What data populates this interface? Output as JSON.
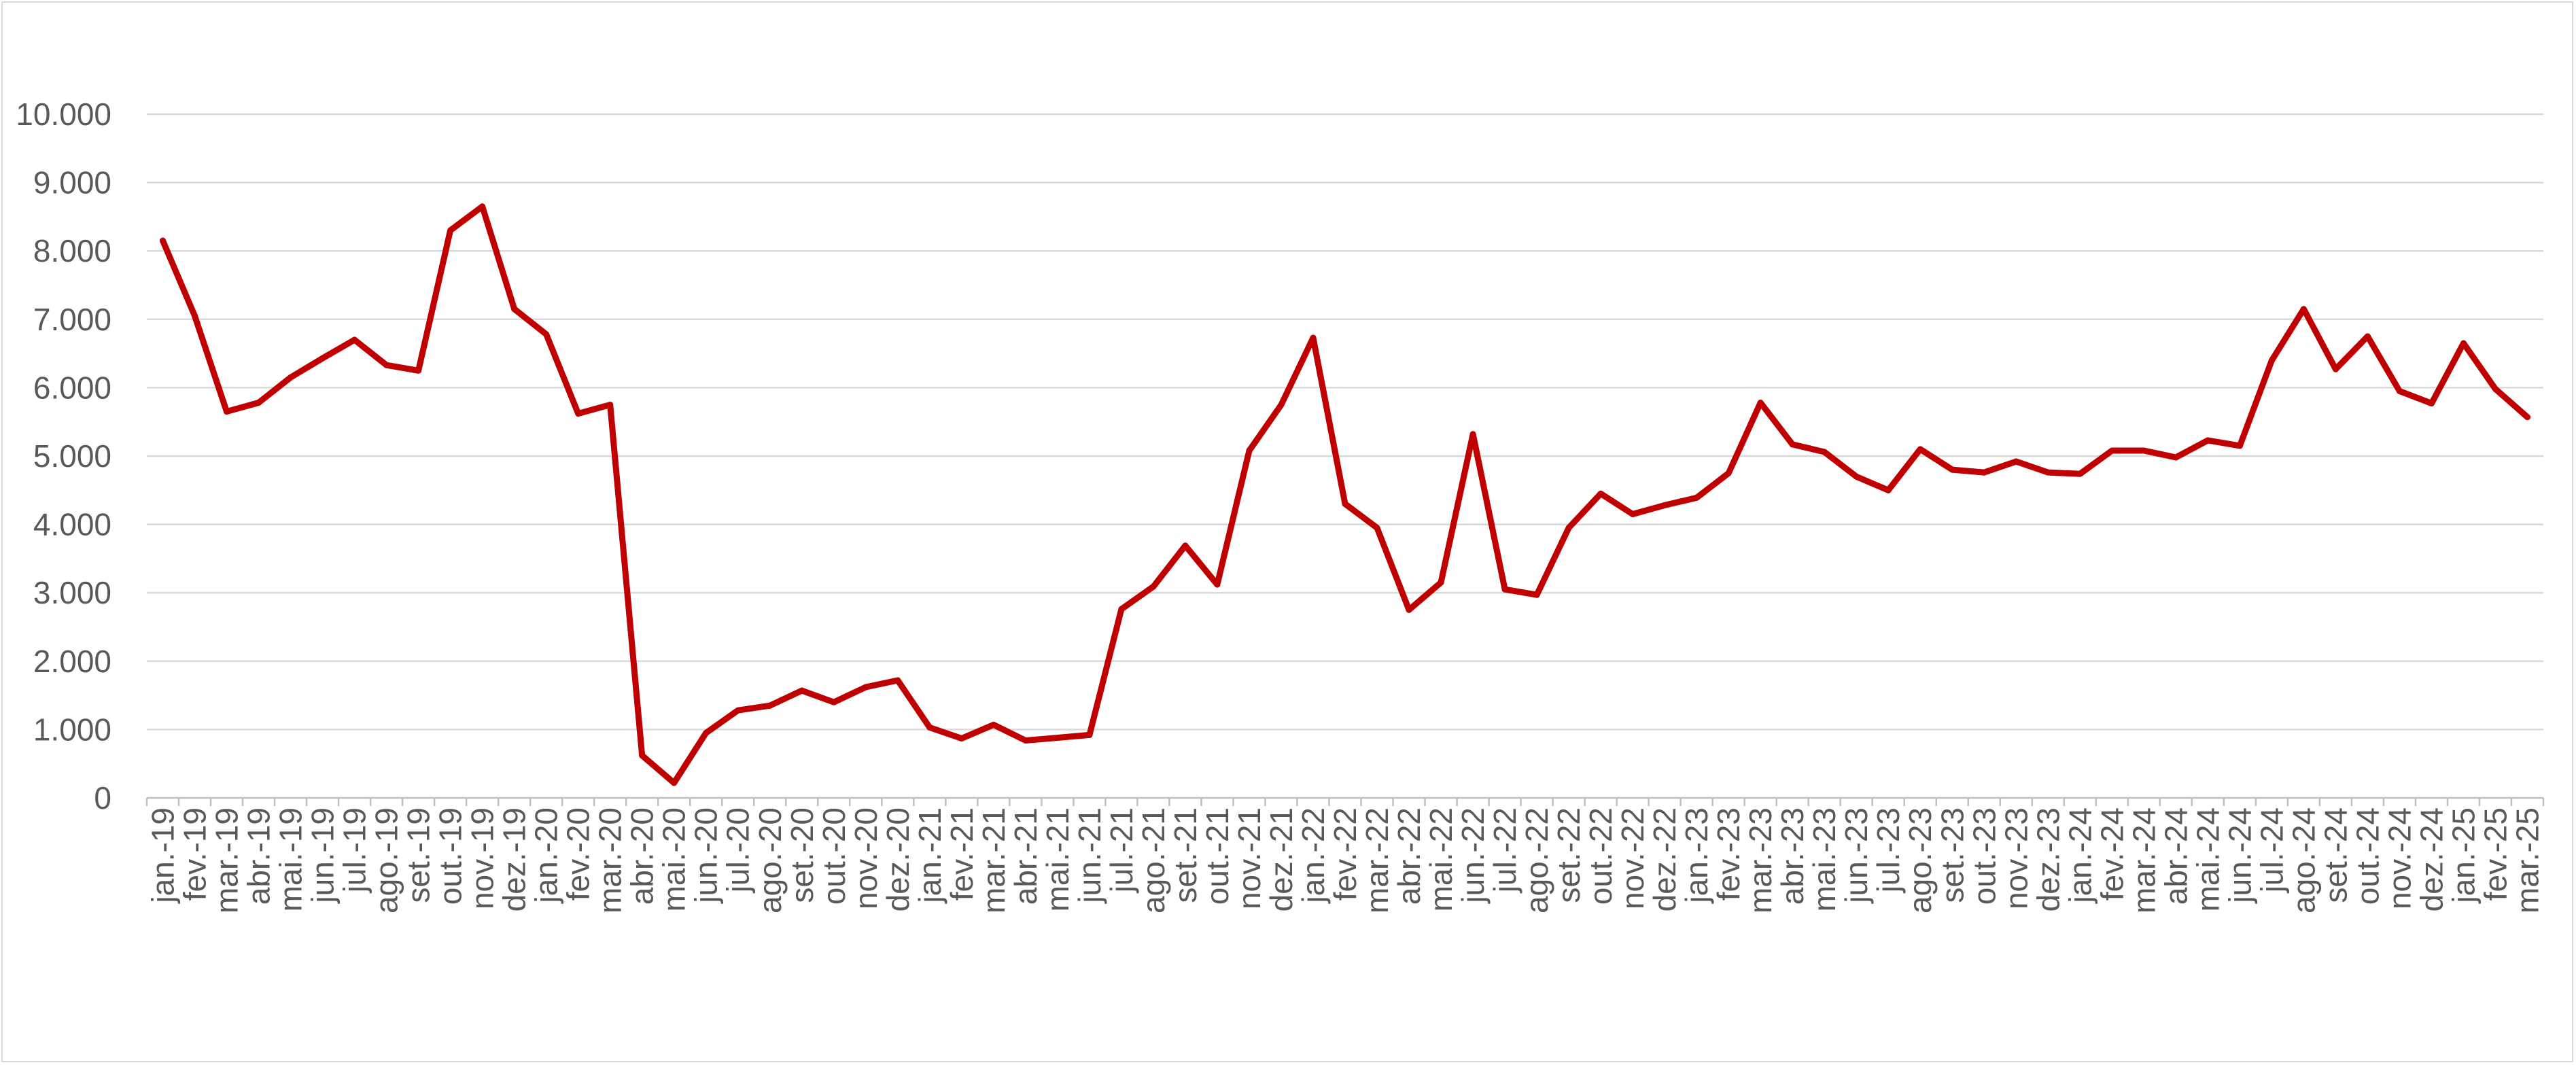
{
  "chart_data": {
    "type": "line",
    "title": "",
    "xlabel": "",
    "ylabel": "",
    "ylim": [
      0,
      10000
    ],
    "yticks": [
      0,
      1000,
      2000,
      3000,
      4000,
      5000,
      6000,
      7000,
      8000,
      9000,
      10000
    ],
    "ytick_labels": [
      "0",
      "1.000",
      "2.000",
      "3.000",
      "4.000",
      "5.000",
      "6.000",
      "7.000",
      "8.000",
      "9.000",
      "10.000"
    ],
    "grid": true,
    "legend": "none",
    "line_color": "#c00000",
    "grid_color": "#d9d9d9",
    "label_color": "#595959",
    "categories": [
      "jan.-19",
      "fev.-19",
      "mar.-19",
      "abr.-19",
      "mai.-19",
      "jun.-19",
      "jul.-19",
      "ago.-19",
      "set.-19",
      "out.-19",
      "nov.-19",
      "dez.-19",
      "jan.-20",
      "fev.-20",
      "mar.-20",
      "abr.-20",
      "mai.-20",
      "jun.-20",
      "jul.-20",
      "ago.-20",
      "set.-20",
      "out.-20",
      "nov.-20",
      "dez.-20",
      "jan.-21",
      "fev.-21",
      "mar.-21",
      "abr.-21",
      "mai.-21",
      "jun.-21",
      "jul.-21",
      "ago.-21",
      "set.-21",
      "out.-21",
      "nov.-21",
      "dez.-21",
      "jan.-22",
      "fev.-22",
      "mar.-22",
      "abr.-22",
      "mai.-22",
      "jun.-22",
      "jul.-22",
      "ago.-22",
      "set.-22",
      "out.-22",
      "nov.-22",
      "dez.-22",
      "jan.-23",
      "fev.-23",
      "mar.-23",
      "abr.-23",
      "mai.-23",
      "jun.-23",
      "jul.-23",
      "ago.-23",
      "set.-23",
      "out.-23",
      "nov.-23",
      "dez.-23",
      "jan.-24",
      "fev.-24",
      "mar.-24",
      "abr.-24",
      "mai.-24",
      "jun.-24",
      "jul.-24",
      "ago.-24",
      "set.-24",
      "out.-24",
      "nov.-24",
      "dez.-24",
      "jan.-25",
      "fev.-25",
      "mar.-25"
    ],
    "series": [
      {
        "values": [
          8150,
          7050,
          5650,
          5780,
          6150,
          6430,
          6700,
          6330,
          6250,
          8300,
          8650,
          7150,
          6780,
          5620,
          5750,
          620,
          220,
          950,
          1280,
          1350,
          1570,
          1400,
          1620,
          1720,
          1030,
          870,
          1070,
          840,
          880,
          920,
          2760,
          3090,
          3690,
          3120,
          5080,
          5750,
          6730,
          4300,
          3950,
          2750,
          3150,
          5320,
          3050,
          2970,
          3950,
          4450,
          4150,
          4280,
          4390,
          4750,
          5780,
          5170,
          5060,
          4700,
          4500,
          5100,
          4800,
          4760,
          4920,
          4760,
          4740,
          5080,
          5080,
          4980,
          5230,
          5150,
          6400,
          7150,
          6270,
          6750,
          5950,
          5770,
          6650,
          5980,
          5570
        ]
      }
    ]
  }
}
